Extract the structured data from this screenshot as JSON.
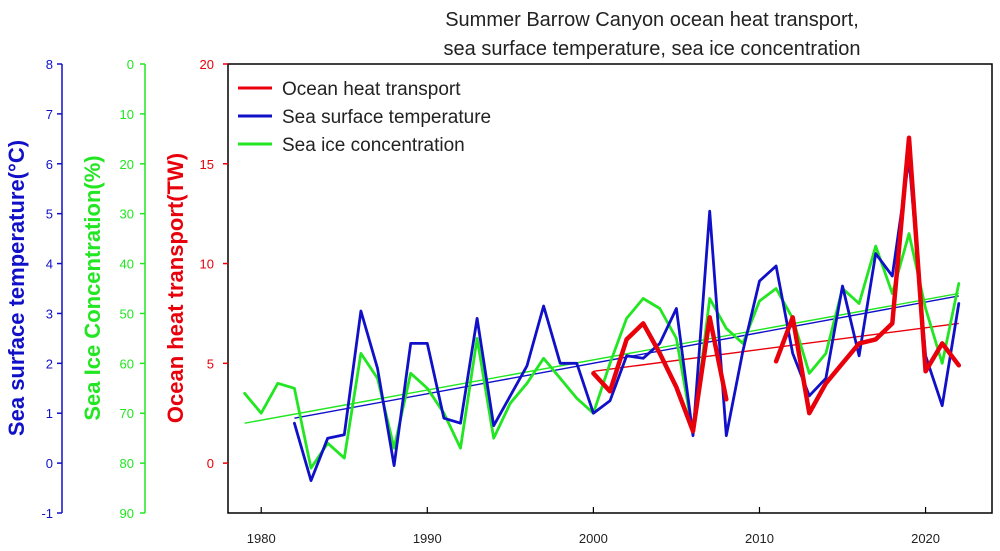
{
  "chart_data": {
    "type": "line",
    "title": [
      "Summer Barrow Canyon ocean heat transport,",
      "sea surface temperature, sea ice concentration"
    ],
    "colors": {
      "oht": "#e8000b",
      "sst": "#1010c8",
      "sic": "#22e622"
    },
    "xaxis": {
      "range": [
        1978,
        2024
      ],
      "ticks": [
        1980,
        1990,
        2000,
        2010,
        2020
      ]
    },
    "axes": {
      "oht": {
        "label": "Ocean heat transport(TW)",
        "range": [
          -2.5,
          20
        ],
        "ticks": [
          0,
          5,
          10,
          15,
          20
        ]
      },
      "sic": {
        "label": "Sea Ice Concentration(%)",
        "range": [
          90,
          0
        ],
        "ticks": [
          0,
          10,
          20,
          30,
          40,
          50,
          60,
          70,
          80,
          90
        ]
      },
      "sst": {
        "label": "Sea surface temperature(°C)",
        "range": [
          -1,
          8
        ],
        "ticks": [
          -1,
          0,
          1,
          2,
          3,
          4,
          5,
          6,
          7,
          8
        ]
      }
    },
    "legend": [
      "Ocean heat transport",
      "Sea surface temperature",
      "Sea ice concentration"
    ],
    "series": [
      {
        "key": "oht",
        "name": "Ocean heat transport",
        "axis": "oht",
        "segments": [
          [
            [
              2000,
              4.5
            ],
            [
              2001,
              3.6
            ],
            [
              2002,
              6.2
            ],
            [
              2003,
              7.0
            ],
            [
              2004,
              5.5
            ],
            [
              2005,
              3.8
            ],
            [
              2006,
              1.6
            ],
            [
              2007,
              7.3
            ],
            [
              2008,
              3.2
            ]
          ],
          [
            [
              2011,
              5.1
            ],
            [
              2012,
              7.3
            ],
            [
              2013,
              2.5
            ],
            [
              2014,
              4.0
            ],
            [
              2015,
              5.0
            ],
            [
              2016,
              6.0
            ],
            [
              2017,
              6.2
            ],
            [
              2018,
              7.0
            ],
            [
              2019,
              16.3
            ],
            [
              2020,
              4.6
            ],
            [
              2021,
              6.0
            ],
            [
              2022,
              4.9
            ]
          ]
        ],
        "trend": [
          [
            2000,
            4.6
          ],
          [
            2022,
            7.0
          ]
        ]
      },
      {
        "key": "sst",
        "name": "Sea surface temperature",
        "axis": "sst",
        "segments": [
          [
            [
              1982,
              0.8
            ],
            [
              1983,
              -0.35
            ],
            [
              1984,
              0.5
            ],
            [
              1985,
              0.57
            ],
            [
              1986,
              3.05
            ],
            [
              1987,
              1.9
            ],
            [
              1988,
              -0.05
            ],
            [
              1989,
              2.4
            ],
            [
              1990,
              2.4
            ],
            [
              1991,
              0.9
            ],
            [
              1992,
              0.8
            ],
            [
              1993,
              2.9
            ],
            [
              1994,
              0.75
            ],
            [
              1995,
              1.35
            ],
            [
              1996,
              1.95
            ],
            [
              1997,
              3.15
            ],
            [
              1998,
              2.0
            ],
            [
              1999,
              2.0
            ],
            [
              2000,
              1.0
            ],
            [
              2001,
              1.25
            ],
            [
              2002,
              2.15
            ],
            [
              2003,
              2.1
            ],
            [
              2004,
              2.4
            ],
            [
              2005,
              3.1
            ],
            [
              2006,
              0.55
            ],
            [
              2007,
              5.05
            ],
            [
              2008,
              0.55
            ],
            [
              2009,
              2.25
            ],
            [
              2010,
              3.65
            ],
            [
              2011,
              3.95
            ],
            [
              2012,
              2.2
            ],
            [
              2013,
              1.35
            ],
            [
              2014,
              1.7
            ],
            [
              2015,
              3.55
            ],
            [
              2016,
              2.15
            ],
            [
              2017,
              4.2
            ],
            [
              2018,
              3.75
            ],
            [
              2019,
              6.1
            ],
            [
              2020,
              2.15
            ],
            [
              2021,
              1.15
            ],
            [
              2022,
              3.2
            ]
          ]
        ],
        "trend": [
          [
            1982,
            0.9
          ],
          [
            2022,
            3.35
          ]
        ]
      },
      {
        "key": "sic",
        "name": "Sea ice concentration",
        "axis": "sic",
        "segments": [
          [
            [
              1979,
              66.0
            ],
            [
              1980,
              70.0
            ],
            [
              1981,
              64.0
            ],
            [
              1982,
              65.0
            ],
            [
              1983,
              81.0
            ],
            [
              1984,
              76.0
            ],
            [
              1985,
              79.0
            ],
            [
              1986,
              58.0
            ],
            [
              1987,
              63.0
            ],
            [
              1988,
              77.0
            ],
            [
              1989,
              62.0
            ],
            [
              1990,
              65.0
            ],
            [
              1991,
              70.0
            ],
            [
              1992,
              77.0
            ],
            [
              1993,
              55.0
            ],
            [
              1994,
              75.0
            ],
            [
              1995,
              68.0
            ],
            [
              1996,
              64.0
            ],
            [
              1997,
              59.0
            ],
            [
              1998,
              63.0
            ],
            [
              1999,
              67.0
            ],
            [
              2000,
              70.0
            ],
            [
              2001,
              60.0
            ],
            [
              2002,
              51.0
            ],
            [
              2003,
              47.0
            ],
            [
              2004,
              49.0
            ],
            [
              2005,
              55.0
            ],
            [
              2006,
              74.0
            ],
            [
              2007,
              47.0
            ],
            [
              2008,
              53.0
            ],
            [
              2009,
              56.0
            ],
            [
              2010,
              47.5
            ],
            [
              2011,
              45.0
            ],
            [
              2012,
              51.0
            ],
            [
              2013,
              62.0
            ],
            [
              2014,
              58.0
            ],
            [
              2015,
              45.0
            ],
            [
              2016,
              48.0
            ],
            [
              2017,
              36.5
            ],
            [
              2018,
              46.0
            ],
            [
              2019,
              34.0
            ],
            [
              2020,
              49.0
            ],
            [
              2021,
              60.0
            ],
            [
              2022,
              44.0
            ]
          ]
        ],
        "trend": [
          [
            1979,
            72.0
          ],
          [
            2022,
            46.0
          ]
        ]
      }
    ]
  }
}
